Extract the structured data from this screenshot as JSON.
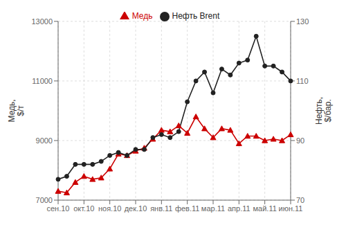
{
  "chart_data": {
    "type": "line",
    "categories": [
      "сен.10",
      null,
      null,
      "окт.10",
      null,
      null,
      "ноя.10",
      null,
      null,
      "дек.10",
      null,
      null,
      "янв.11",
      null,
      null,
      "фев.11",
      null,
      null,
      "мар.11",
      null,
      null,
      "апр.11",
      null,
      null,
      "май.11",
      null,
      null,
      "июн.11"
    ],
    "series": [
      {
        "name": "Медь",
        "color": "#cc0000",
        "marker": "triangle",
        "values": [
          7300,
          7250,
          7600,
          7800,
          7700,
          7750,
          8050,
          8550,
          8500,
          8650,
          8750,
          9050,
          9350,
          9300,
          9500,
          9250,
          9800,
          9400,
          9100,
          9400,
          9350,
          8900,
          9150,
          9150,
          9000,
          9050,
          9000,
          9200
        ]
      },
      {
        "name": "Нефть Brent",
        "color": "#222222",
        "marker": "circle",
        "axis": "y2",
        "values": [
          77,
          78,
          82,
          82,
          82,
          83,
          85,
          86,
          85,
          87,
          87,
          91,
          92,
          91,
          93,
          103,
          110,
          113,
          106,
          114,
          112,
          116,
          117,
          125,
          115,
          115,
          113,
          110
        ]
      }
    ],
    "ylabel": "Медь,\n$/т",
    "y2label": "Нефть,\n$/бар.",
    "ylim": [
      7000,
      13000
    ],
    "yticks": [
      7000,
      9000,
      11000,
      13000
    ],
    "y2lim": [
      70,
      130
    ],
    "y2ticks": [
      70,
      90,
      110,
      130
    ],
    "grid": true,
    "legend": "top"
  }
}
